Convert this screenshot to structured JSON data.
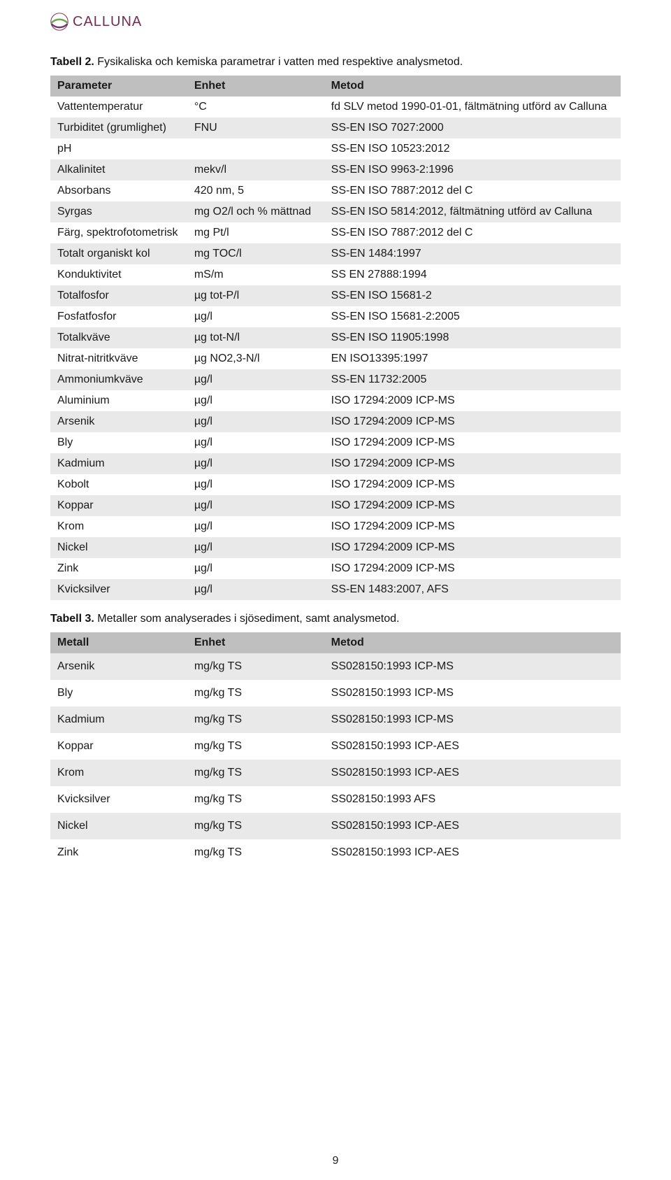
{
  "brand": {
    "name": "CALLUNA"
  },
  "pageNumber": "9",
  "table1": {
    "caption_bold": "Tabell 2.",
    "caption_rest": " Fysikaliska och kemiska parametrar i vatten med respektive analysmetod.",
    "columns": [
      "Parameter",
      "Enhet",
      "Metod"
    ],
    "rows": [
      [
        "Vattentemperatur",
        "°C",
        "fd SLV metod 1990-01-01, fältmätning utförd av Calluna"
      ],
      [
        "Turbiditet (grumlighet)",
        "FNU",
        "SS-EN ISO 7027:2000"
      ],
      [
        "pH",
        "",
        "SS-EN ISO 10523:2012"
      ],
      [
        "Alkalinitet",
        "mekv/l",
        "SS-EN ISO 9963-2:1996"
      ],
      [
        "Absorbans",
        "420 nm, 5",
        "SS-EN ISO 7887:2012 del C"
      ],
      [
        "Syrgas",
        "mg O2/l och % mättnad",
        "SS-EN ISO 5814:2012, fältmätning utförd av Calluna"
      ],
      [
        "Färg, spektrofotometrisk",
        "mg Pt/l",
        "SS-EN ISO 7887:2012 del C"
      ],
      [
        "Totalt organiskt kol",
        "mg TOC/l",
        "SS-EN 1484:1997"
      ],
      [
        "Konduktivitet",
        "mS/m",
        "SS EN 27888:1994"
      ],
      [
        "Totalfosfor",
        "µg tot-P/l",
        "SS-EN ISO 15681-2"
      ],
      [
        "Fosfatfosfor",
        "µg/l",
        "SS-EN ISO 15681-2:2005"
      ],
      [
        "Totalkväve",
        "µg tot-N/l",
        "SS-EN ISO 11905:1998"
      ],
      [
        "Nitrat-nitritkväve",
        "µg NO2,3-N/l",
        "EN ISO13395:1997"
      ],
      [
        "Ammoniumkväve",
        "µg/l",
        "SS-EN 11732:2005"
      ],
      [
        "Aluminium",
        "µg/l",
        "ISO 17294:2009 ICP-MS"
      ],
      [
        "Arsenik",
        "µg/l",
        "ISO 17294:2009 ICP-MS"
      ],
      [
        "Bly",
        "µg/l",
        "ISO 17294:2009 ICP-MS"
      ],
      [
        "Kadmium",
        "µg/l",
        "ISO 17294:2009 ICP-MS"
      ],
      [
        "Kobolt",
        "µg/l",
        "ISO 17294:2009 ICP-MS"
      ],
      [
        "Koppar",
        "µg/l",
        "ISO 17294:2009 ICP-MS"
      ],
      [
        "Krom",
        "µg/l",
        "ISO 17294:2009 ICP-MS"
      ],
      [
        "Nickel",
        "µg/l",
        "ISO 17294:2009 ICP-MS"
      ],
      [
        "Zink",
        "µg/l",
        "ISO 17294:2009 ICP-MS"
      ],
      [
        "Kvicksilver",
        "µg/l",
        "SS-EN 1483:2007, AFS"
      ]
    ]
  },
  "table2": {
    "caption_bold": "Tabell 3.",
    "caption_rest": " Metaller som analyserades i sjösediment, samt analysmetod.",
    "columns": [
      "Metall",
      "Enhet",
      "Metod"
    ],
    "rows": [
      [
        "Arsenik",
        "mg/kg TS",
        "SS028150:1993 ICP-MS"
      ],
      [
        "Bly",
        "mg/kg TS",
        "SS028150:1993 ICP-MS"
      ],
      [
        "Kadmium",
        "mg/kg TS",
        "SS028150:1993 ICP-MS"
      ],
      [
        "Koppar",
        "mg/kg TS",
        "SS028150:1993 ICP-AES"
      ],
      [
        "Krom",
        "mg/kg TS",
        "SS028150:1993 ICP-AES"
      ],
      [
        "Kvicksilver",
        "mg/kg TS",
        "SS028150:1993 AFS"
      ],
      [
        "Nickel",
        "mg/kg TS",
        "SS028150:1993 ICP-AES"
      ],
      [
        "Zink",
        "mg/kg TS",
        "SS028150:1993 ICP-AES"
      ]
    ]
  }
}
